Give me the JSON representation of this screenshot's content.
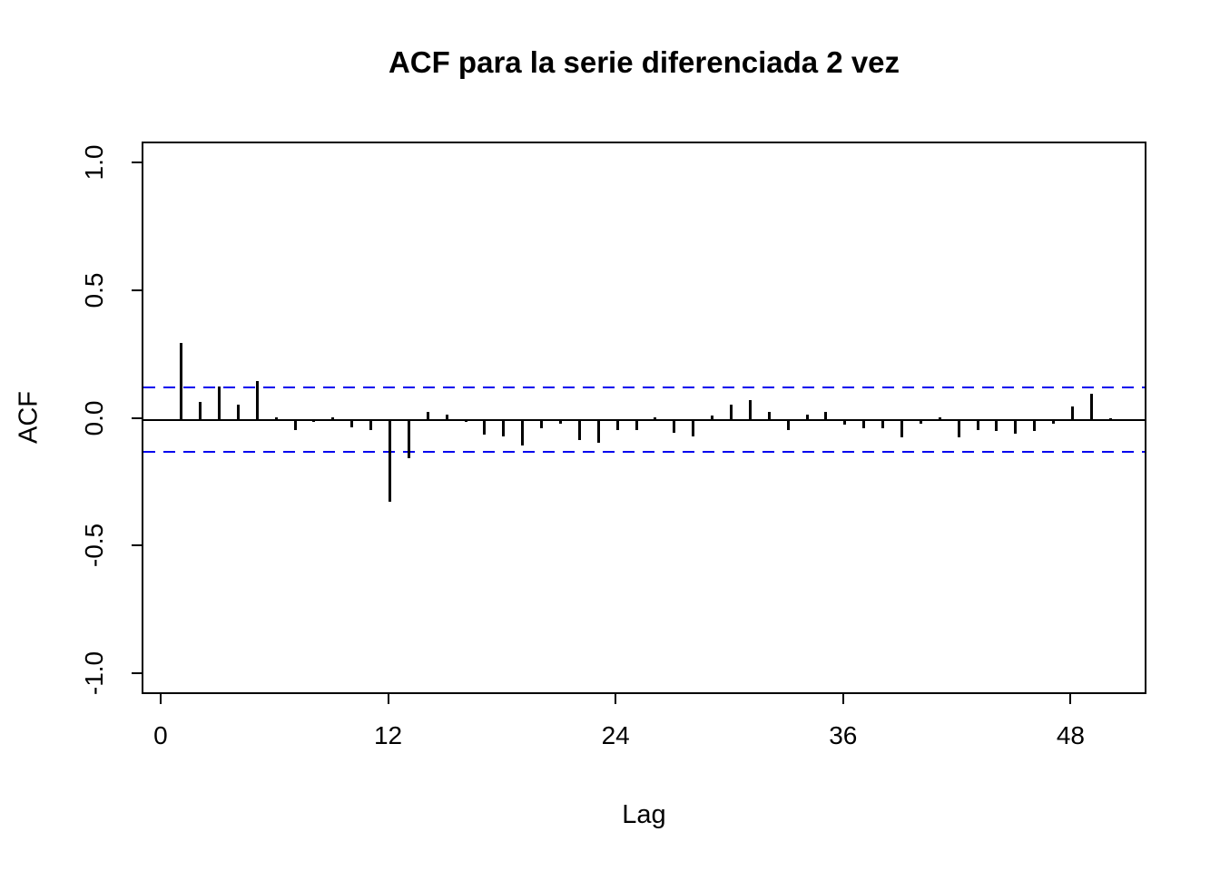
{
  "chart_data": {
    "type": "bar",
    "subtype": "acf-stem-plot",
    "title": "ACF para la serie diferenciada 2 vez",
    "xlabel": "Lag",
    "ylabel": "ACF",
    "xlim": [
      -1,
      52
    ],
    "ylim": [
      -1.08,
      1.08
    ],
    "grid": "off",
    "conf_level": 0.127,
    "x_ticks": [
      {
        "label": "0",
        "value": 0
      },
      {
        "label": "12",
        "value": 12
      },
      {
        "label": "24",
        "value": 24
      },
      {
        "label": "36",
        "value": 36
      },
      {
        "label": "48",
        "value": 48
      }
    ],
    "y_ticks": [
      {
        "label": "1.0",
        "value": 1.0
      },
      {
        "label": "0.5",
        "value": 0.5
      },
      {
        "label": "0.0",
        "value": 0.0
      },
      {
        "label": "-0.5",
        "value": -0.5
      },
      {
        "label": "-1.0",
        "value": -1.0
      }
    ],
    "lags": [
      1,
      2,
      3,
      4,
      5,
      6,
      7,
      8,
      9,
      10,
      11,
      12,
      13,
      14,
      15,
      16,
      17,
      18,
      19,
      20,
      21,
      22,
      23,
      24,
      25,
      26,
      27,
      28,
      29,
      30,
      31,
      32,
      33,
      34,
      35,
      36,
      37,
      38,
      39,
      40,
      41,
      42,
      43,
      44,
      45,
      46,
      47,
      48,
      49,
      50
    ],
    "values": [
      0.3,
      0.07,
      0.13,
      0.06,
      0.15,
      0.01,
      -0.04,
      -0.01,
      0.01,
      -0.03,
      -0.04,
      -0.32,
      -0.15,
      0.03,
      0.02,
      -0.01,
      -0.06,
      -0.065,
      -0.1,
      -0.035,
      -0.015,
      -0.08,
      -0.09,
      -0.04,
      -0.04,
      0.01,
      -0.05,
      -0.065,
      0.015,
      0.06,
      0.075,
      0.03,
      -0.04,
      0.02,
      0.03,
      -0.02,
      -0.035,
      -0.035,
      -0.07,
      -0.015,
      0.01,
      -0.07,
      -0.04,
      -0.045,
      -0.055,
      -0.045,
      -0.015,
      0.05,
      0.1,
      0.005
    ]
  },
  "colors": {
    "background": "#ffffff",
    "bar": "#000000",
    "axis": "#000000",
    "conf_band": "#0000ee"
  }
}
